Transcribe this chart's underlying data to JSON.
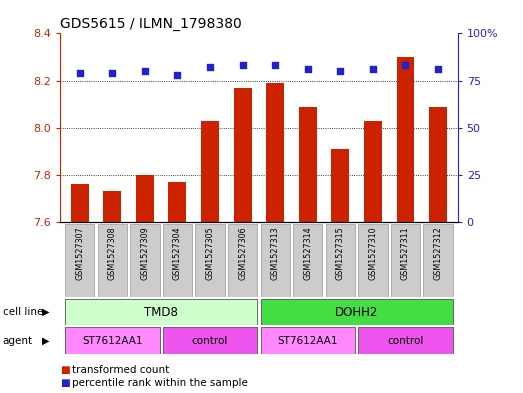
{
  "title": "GDS5615 / ILMN_1798380",
  "samples": [
    "GSM1527307",
    "GSM1527308",
    "GSM1527309",
    "GSM1527304",
    "GSM1527305",
    "GSM1527306",
    "GSM1527313",
    "GSM1527314",
    "GSM1527315",
    "GSM1527310",
    "GSM1527311",
    "GSM1527312"
  ],
  "bar_values": [
    7.76,
    7.73,
    7.8,
    7.77,
    8.03,
    8.17,
    8.19,
    8.09,
    7.91,
    8.03,
    8.3,
    8.09
  ],
  "percentile_values": [
    79,
    79,
    80,
    78,
    82,
    83,
    83,
    81,
    80,
    81,
    83,
    81
  ],
  "bar_color": "#cc2200",
  "percentile_color": "#2222cc",
  "ymin": 7.6,
  "ymax": 8.4,
  "y2min": 0,
  "y2max": 100,
  "yticks": [
    7.6,
    7.8,
    8.0,
    8.2,
    8.4
  ],
  "y2ticks": [
    0,
    25,
    50,
    75,
    100
  ],
  "y2ticklabels": [
    "0",
    "25",
    "50",
    "75",
    "100%"
  ],
  "cell_line_groups": [
    {
      "label": "TMD8",
      "start": 0,
      "end": 5,
      "color": "#ccffcc"
    },
    {
      "label": "DOHH2",
      "start": 6,
      "end": 11,
      "color": "#44dd44"
    }
  ],
  "agent_groups": [
    {
      "label": "ST7612AA1",
      "start": 0,
      "end": 2,
      "color": "#ff88ff"
    },
    {
      "label": "control",
      "start": 3,
      "end": 5,
      "color": "#ee55ee"
    },
    {
      "label": "ST7612AA1",
      "start": 6,
      "end": 8,
      "color": "#ff88ff"
    },
    {
      "label": "control",
      "start": 9,
      "end": 11,
      "color": "#ee55ee"
    }
  ],
  "tick_color_left": "#cc2200",
  "tick_color_right": "#2222cc",
  "bar_width": 0.55,
  "grid_lines": [
    7.8,
    8.0,
    8.2
  ]
}
